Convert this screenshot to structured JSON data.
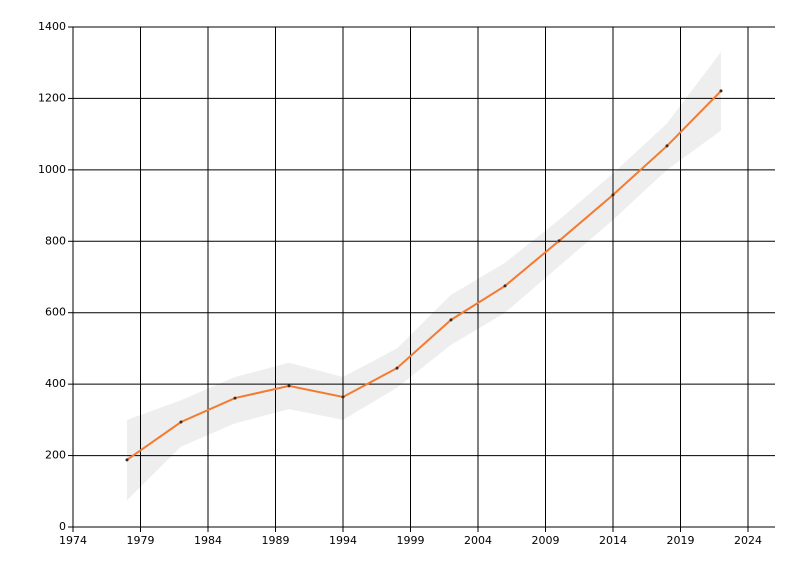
{
  "chart_data": {
    "type": "line",
    "x": [
      1978,
      1982,
      1986,
      1990,
      1994,
      1998,
      2002,
      2006,
      2010,
      2014,
      2018,
      2022
    ],
    "values": [
      188,
      294,
      361,
      395,
      364,
      445,
      580,
      675,
      801,
      930,
      1067,
      1221
    ],
    "upper": [
      300,
      355,
      420,
      460,
      420,
      500,
      650,
      740,
      860,
      990,
      1130,
      1330
    ],
    "lower": [
      75,
      225,
      290,
      330,
      300,
      390,
      510,
      600,
      730,
      860,
      1000,
      1110
    ],
    "color": "#f47a30",
    "band_color": "#eeeeee",
    "marker_color": "#3a2a20",
    "xlim": [
      1974,
      2026
    ],
    "xticks": [
      1974,
      1979,
      1984,
      1989,
      1994,
      1999,
      2004,
      2009,
      2014,
      2019,
      2024
    ],
    "ylim": [
      0,
      1400
    ],
    "yticks": [
      0,
      200,
      400,
      600,
      800,
      1000,
      1200,
      1400
    ],
    "grid": true
  }
}
